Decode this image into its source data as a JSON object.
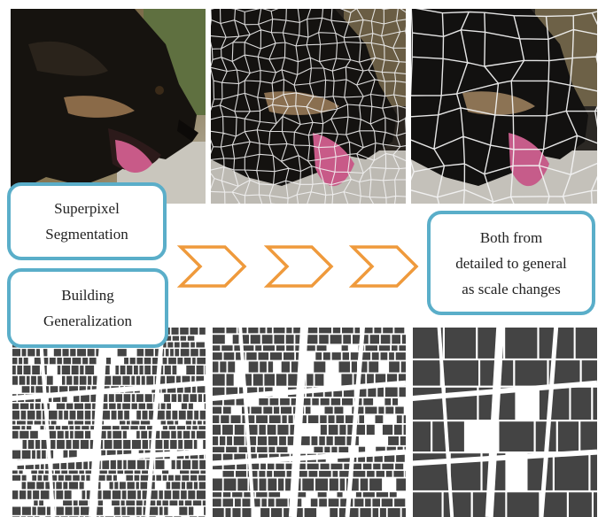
{
  "labels": {
    "superpixel": [
      "Superpixel",
      "Segmentation"
    ],
    "generalization": [
      "Building",
      "Generalization"
    ],
    "result": [
      "Both from",
      "detailed to general",
      "as scale changes"
    ]
  },
  "colors": {
    "box_border": "#5aaec9",
    "arrow": "#ef9a3c",
    "building": "#444444",
    "superpixel_edge": "#f2f2f2"
  },
  "icons": [
    "chevron-right-icon",
    "chevron-right-icon",
    "chevron-right-icon"
  ]
}
